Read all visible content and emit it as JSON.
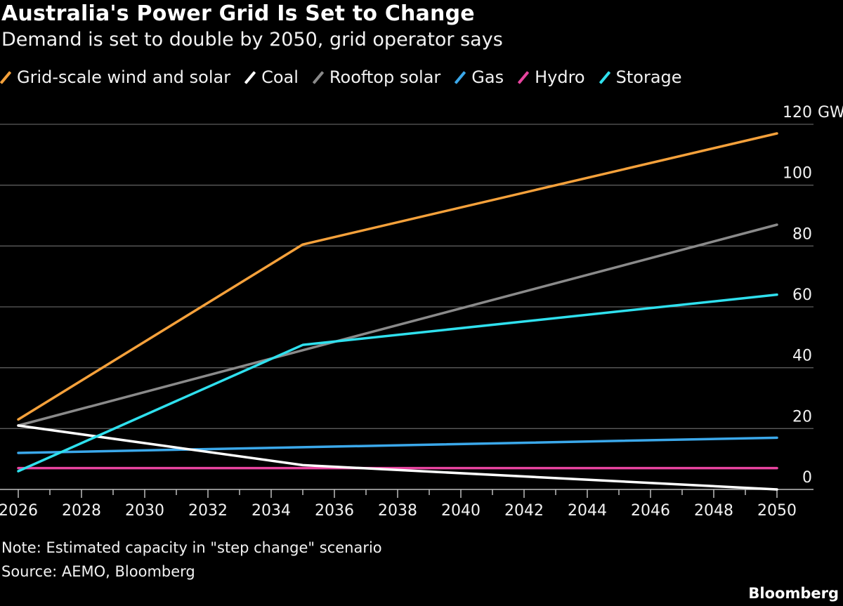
{
  "chart_data": {
    "type": "line",
    "title": "Australia's Power Grid Is Set to Change",
    "subtitle": "Demand is set to double by 2050, grid operator says",
    "x_ticks": [
      "2026",
      "2028",
      "2030",
      "2032",
      "2034",
      "2036",
      "2038",
      "2040",
      "2042",
      "2044",
      "2046",
      "2048",
      "2050"
    ],
    "y_ticks": [
      "0",
      "20",
      "40",
      "60",
      "80",
      "100",
      "120"
    ],
    "y_unit": "GW",
    "xlim": [
      2026,
      2050
    ],
    "ylim": [
      0,
      120
    ],
    "grid": "horizontal",
    "legend_position": "top-left",
    "series": [
      {
        "name": "Grid-scale wind and solar",
        "color": "#f5a13b",
        "x": [
          2026,
          2035,
          2050
        ],
        "values": [
          23,
          80.5,
          117
        ]
      },
      {
        "name": "Coal",
        "color": "#ffffff",
        "x": [
          2026,
          2035,
          2050
        ],
        "values": [
          21,
          8,
          0
        ]
      },
      {
        "name": "Rooftop solar",
        "color": "#8a8a8a",
        "x": [
          2026,
          2050
        ],
        "values": [
          21,
          87
        ]
      },
      {
        "name": "Gas",
        "color": "#3ba8ea",
        "x": [
          2026,
          2050
        ],
        "values": [
          12,
          17
        ]
      },
      {
        "name": "Hydro",
        "color": "#e8449f",
        "x": [
          2026,
          2050
        ],
        "values": [
          7,
          7
        ]
      },
      {
        "name": "Storage",
        "color": "#2fe0ee",
        "x": [
          2026,
          2035,
          2050
        ],
        "values": [
          6,
          47.5,
          64
        ]
      }
    ]
  },
  "notes": {
    "note": "Note: Estimated capacity in \"step change\" scenario",
    "source": "Source: AEMO, Bloomberg",
    "brand": "Bloomberg"
  }
}
